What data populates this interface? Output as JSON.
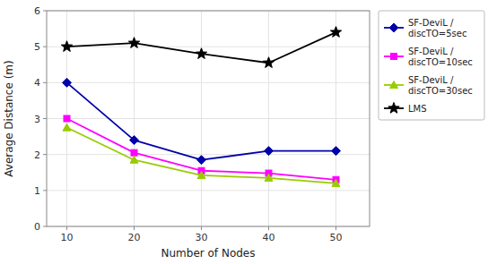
{
  "chart_data": {
    "type": "line",
    "x": [
      10,
      20,
      30,
      40,
      50
    ],
    "series": [
      {
        "name": "SF-DeviL /\ndiscTO=5sec",
        "color": "#0000AA",
        "marker": "diamond",
        "line_style": "solid",
        "values": [
          4.0,
          2.4,
          1.85,
          2.1,
          2.1
        ]
      },
      {
        "name": "SF-DeviL /\ndiscTO=10sec",
        "color": "#FF00FF",
        "marker": "square",
        "line_style": "solid",
        "values": [
          3.0,
          2.05,
          1.55,
          1.48,
          1.3
        ]
      },
      {
        "name": "SF-DeviL /\ndiscTO=30sec",
        "color": "#99CC00",
        "marker": "triangle",
        "line_style": "solid",
        "values": [
          2.75,
          1.85,
          1.42,
          1.35,
          1.2
        ]
      },
      {
        "name": "LMS",
        "color": "#000000",
        "marker": "star",
        "line_style": "solid",
        "values": [
          5.0,
          5.1,
          4.8,
          4.55,
          5.4
        ]
      }
    ],
    "xlabel": "Number of Nodes",
    "ylabel": "Average Distance (m)",
    "xlim": [
      7,
      55
    ],
    "ylim": [
      0,
      6
    ],
    "xticks": [
      10,
      20,
      30,
      40,
      50
    ],
    "yticks": [
      0,
      1,
      2,
      3,
      4,
      5,
      6
    ],
    "grid": true,
    "legend": "upper right"
  }
}
